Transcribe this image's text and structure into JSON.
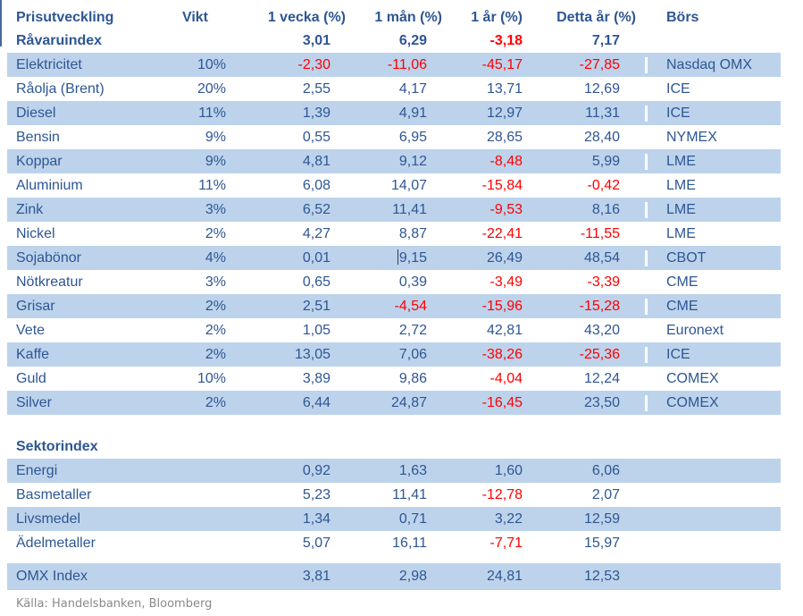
{
  "title": "Prisutveckling",
  "source": "Källa: Handelsbanken, Bloomberg",
  "colors": {
    "text_navy": "#2e5693",
    "negative_red": "#ff0000",
    "row_band_blue": "#bdd3ec",
    "source_gray": "#8a8a8a",
    "background": "#ffffff"
  },
  "table": {
    "columns": [
      {
        "key": "label",
        "label": "Prisutveckling"
      },
      {
        "key": "vikt",
        "label": "Vikt"
      },
      {
        "key": "w1",
        "label": "1 vecka (%)"
      },
      {
        "key": "m1",
        "label": "1 mån (%)"
      },
      {
        "key": "y1",
        "label": "1 år (%)"
      },
      {
        "key": "ytd",
        "label": "Detta år (%)"
      },
      {
        "key": "bors",
        "label": "Börs"
      }
    ],
    "rows": [
      {
        "label": "Råvaruindex",
        "vikt": "",
        "w1": "3,01",
        "m1": "6,29",
        "y1": "-3,18",
        "ytd": "7,17",
        "bors": "",
        "bold": true,
        "shaded": false
      },
      {
        "label": "Elektricitet",
        "vikt": "10%",
        "w1": "-2,30",
        "m1": "-11,06",
        "y1": "-45,17",
        "ytd": "-27,85",
        "bors": "Nasdaq OMX",
        "shaded": true
      },
      {
        "label": "Råolja (Brent)",
        "vikt": "20%",
        "w1": "2,55",
        "m1": "4,17",
        "y1": "13,71",
        "ytd": "12,69",
        "bors": "ICE",
        "shaded": false
      },
      {
        "label": "Diesel",
        "vikt": "11%",
        "w1": "1,39",
        "m1": "4,91",
        "y1": "12,97",
        "ytd": "11,31",
        "bors": "ICE",
        "shaded": true
      },
      {
        "label": "Bensin",
        "vikt": "9%",
        "w1": "0,55",
        "m1": "6,95",
        "y1": "28,65",
        "ytd": "28,40",
        "bors": "NYMEX",
        "shaded": false
      },
      {
        "label": "Koppar",
        "vikt": "9%",
        "w1": "4,81",
        "m1": "9,12",
        "y1": "-8,48",
        "ytd": "5,99",
        "bors": "LME",
        "shaded": true
      },
      {
        "label": "Aluminium",
        "vikt": "11%",
        "w1": "6,08",
        "m1": "14,07",
        "y1": "-15,84",
        "ytd": "-0,42",
        "bors": "LME",
        "shaded": false
      },
      {
        "label": "Zink",
        "vikt": "3%",
        "w1": "6,52",
        "m1": "11,41",
        "y1": "-9,53",
        "ytd": "8,16",
        "bors": "LME",
        "shaded": true
      },
      {
        "label": "Nickel",
        "vikt": "2%",
        "w1": "4,27",
        "m1": "8,87",
        "y1": "-22,41",
        "ytd": "-11,55",
        "bors": "LME",
        "shaded": false
      },
      {
        "label": "Sojabönor",
        "vikt": "4%",
        "w1": "0,01",
        "m1": "9,15",
        "y1": "26,49",
        "ytd": "48,54",
        "bors": "CBOT",
        "shaded": true,
        "caret": true
      },
      {
        "label": "Nötkreatur",
        "vikt": "3%",
        "w1": "0,65",
        "m1": "0,39",
        "y1": "-3,49",
        "ytd": "-3,39",
        "bors": "CME",
        "shaded": false
      },
      {
        "label": "Grisar",
        "vikt": "2%",
        "w1": "2,51",
        "m1": "-4,54",
        "y1": "-15,96",
        "ytd": "-15,28",
        "bors": "CME",
        "shaded": true
      },
      {
        "label": "Vete",
        "vikt": "2%",
        "w1": "1,05",
        "m1": "2,72",
        "y1": "42,81",
        "ytd": "43,20",
        "bors": "Euronext",
        "shaded": false
      },
      {
        "label": "Kaffe",
        "vikt": "2%",
        "w1": "13,05",
        "m1": "7,06",
        "y1": "-38,26",
        "ytd": "-25,36",
        "bors": "ICE",
        "shaded": true
      },
      {
        "label": "Guld",
        "vikt": "10%",
        "w1": "3,89",
        "m1": "9,86",
        "y1": "-4,04",
        "ytd": "12,24",
        "bors": "COMEX",
        "shaded": false
      },
      {
        "label": "Silver",
        "vikt": "2%",
        "w1": "6,44",
        "m1": "24,87",
        "y1": "-16,45",
        "ytd": "23,50",
        "bors": "COMEX",
        "shaded": true
      },
      {
        "spacer": 22
      },
      {
        "label": "Sektorindex",
        "vikt": "",
        "w1": "",
        "m1": "",
        "y1": "",
        "ytd": "",
        "bors": "",
        "bold": true,
        "shaded": false
      },
      {
        "label": "Energi",
        "vikt": "",
        "w1": "0,92",
        "m1": "1,63",
        "y1": "1,60",
        "ytd": "6,06",
        "bors": "",
        "shaded": true
      },
      {
        "label": "Basmetaller",
        "vikt": "",
        "w1": "5,23",
        "m1": "11,41",
        "y1": "-12,78",
        "ytd": "2,07",
        "bors": "",
        "shaded": false
      },
      {
        "label": "Livsmedel",
        "vikt": "",
        "w1": "1,34",
        "m1": "0,71",
        "y1": "3,22",
        "ytd": "12,59",
        "bors": "",
        "shaded": true
      },
      {
        "label": "Ädelmetaller",
        "vikt": "",
        "w1": "5,07",
        "m1": "16,11",
        "y1": "-7,71",
        "ytd": "15,97",
        "bors": "",
        "shaded": false
      },
      {
        "spacer": 9
      },
      {
        "label": "OMX Index",
        "vikt": "",
        "w1": "3,81",
        "m1": "2,98",
        "y1": "24,81",
        "ytd": "12,53",
        "bors": "",
        "shaded": true,
        "omx": true
      }
    ]
  }
}
